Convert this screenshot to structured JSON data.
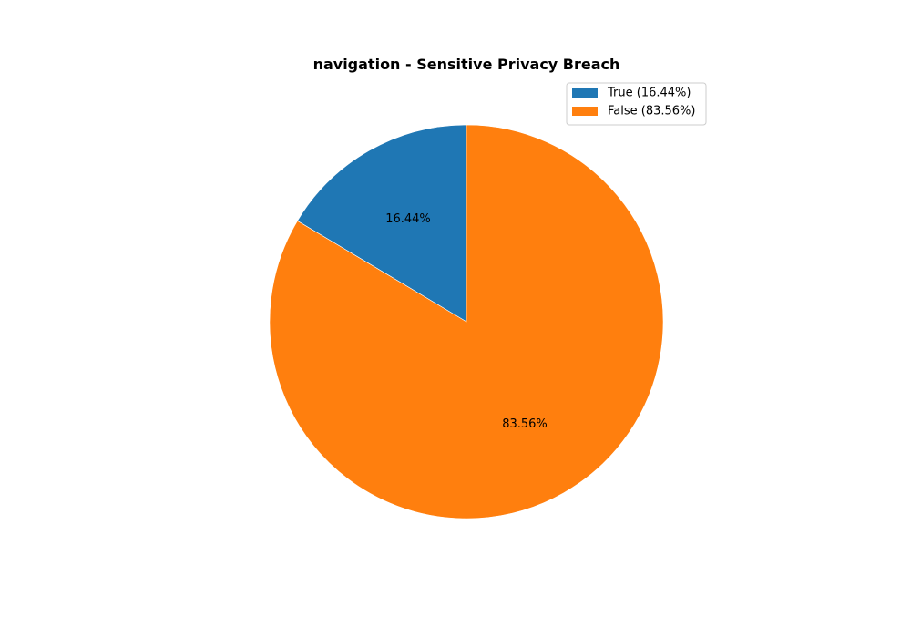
{
  "chart_data": {
    "type": "pie",
    "title": "navigation - Sensitive Privacy Breach",
    "start_angle_deg": 90,
    "direction": "counterclockwise",
    "legend_position": "top-right",
    "slices": [
      {
        "label": "True",
        "value": 16.44,
        "percent_label": "16.44%",
        "legend_label": "True (16.44%)",
        "color": "#1f77b4"
      },
      {
        "label": "False",
        "value": 83.56,
        "percent_label": "83.56%",
        "legend_label": "False (83.56%)",
        "color": "#ff7f0e"
      }
    ]
  }
}
